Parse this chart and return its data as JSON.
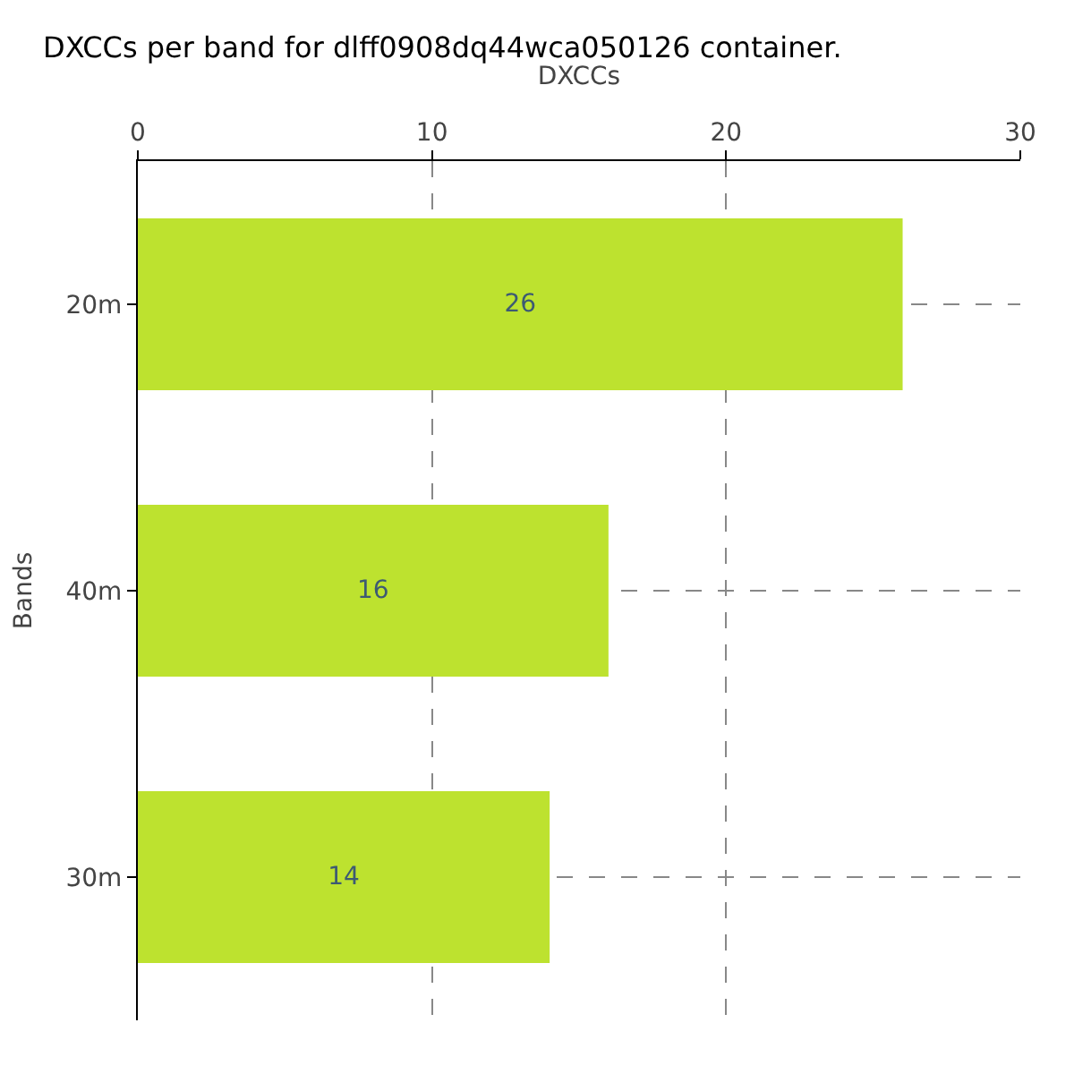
{
  "chart_data": {
    "type": "bar",
    "orientation": "horizontal",
    "title": "DXCCs per band for dlff0908dq44wca050126 container.",
    "xlabel": "DXCCs",
    "ylabel": "Bands",
    "categories": [
      "20m",
      "40m",
      "30m"
    ],
    "series": [
      {
        "color": "#bde22f",
        "values": [
          26,
          16,
          14
        ]
      }
    ],
    "xlim": [
      0,
      30
    ],
    "xticks": [
      0,
      10,
      20,
      30
    ],
    "grid": true,
    "data_labels": true
  }
}
